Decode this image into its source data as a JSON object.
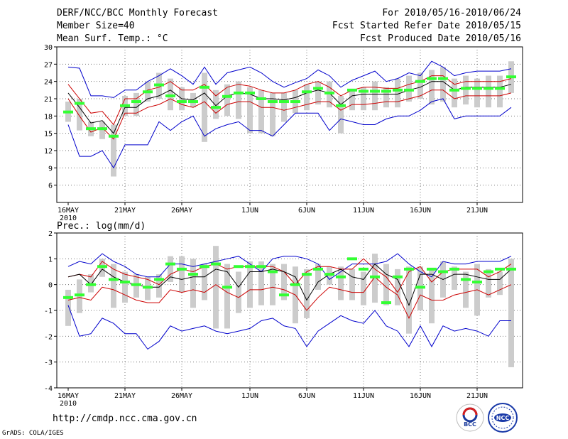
{
  "header": {
    "title": "DERF/NCC/BCC Monthly Forecast",
    "member": "Member Size=40",
    "variable": "Mean Surf. Temp.: °C",
    "period": "For 2010/05/16-2010/06/24",
    "started": "Fcst Started Refer Date 2010/05/15",
    "produced": "Fcst Produced Date 2010/05/16"
  },
  "footer": {
    "url": "http://cmdp.ncc.cma.gov.cn",
    "grads": "GrADS: COLA/IGES"
  },
  "logos": {
    "bcc": "BCC",
    "ncc": "NCC"
  },
  "colors": {
    "envelope": "#0000cc",
    "spread": "#cc0000",
    "mean": "#000000",
    "median": "#33ff33",
    "box": "#cccccc"
  },
  "chart_data": [
    {
      "type": "box-plot-with-lines",
      "title": "Mean Surf. Temp.: °C",
      "x_tick_labels": [
        "16MAY",
        "21MAY",
        "26MAY",
        "1JUN",
        "6JUN",
        "11JUN",
        "16JUN",
        "21JUN"
      ],
      "x_year_label": "2010",
      "x_tick_days": [
        0,
        5,
        10,
        16,
        21,
        26,
        31,
        36
      ],
      "ylim": [
        3,
        30
      ],
      "y_ticks": [
        6,
        9,
        12,
        15,
        18,
        21,
        24,
        27,
        30
      ],
      "days": 40,
      "max": [
        26.5,
        26.3,
        21.5,
        21.5,
        21.2,
        22.5,
        22.5,
        24.0,
        25.0,
        26.2,
        25.0,
        23.5,
        26.5,
        23.5,
        25.5,
        26.0,
        26.5,
        25.5,
        24.0,
        23.0,
        23.8,
        24.5,
        26.0,
        25.0,
        23.0,
        24.2,
        25.0,
        25.8,
        24.0,
        24.5,
        25.5,
        25.0,
        27.5,
        26.5,
        25.0,
        25.5,
        25.8,
        25.8,
        25.8,
        26.2
      ],
      "upper": [
        23.5,
        21.0,
        18.5,
        18.8,
        16.5,
        21.0,
        21.0,
        22.5,
        23.0,
        24.0,
        22.5,
        22.5,
        23.5,
        21.5,
        23.0,
        23.5,
        23.2,
        22.5,
        22.0,
        22.0,
        22.5,
        23.5,
        24.0,
        23.0,
        21.5,
        22.5,
        23.0,
        23.0,
        22.8,
        22.8,
        23.5,
        24.0,
        25.0,
        25.0,
        23.5,
        24.0,
        24.0,
        24.0,
        24.0,
        24.5
      ],
      "mean": [
        22.0,
        19.5,
        16.8,
        17.2,
        15.0,
        19.5,
        19.5,
        21.0,
        21.5,
        22.5,
        21.0,
        20.8,
        22.0,
        19.8,
        21.5,
        22.0,
        21.8,
        21.0,
        21.0,
        20.8,
        21.2,
        22.0,
        22.5,
        22.0,
        20.0,
        21.5,
        21.8,
        21.8,
        21.8,
        21.8,
        22.5,
        23.0,
        24.0,
        24.0,
        22.5,
        23.0,
        23.0,
        23.0,
        23.0,
        23.5
      ],
      "lower": [
        21.0,
        18.0,
        15.2,
        16.0,
        14.0,
        18.5,
        18.5,
        19.5,
        20.0,
        21.0,
        20.0,
        19.5,
        20.5,
        18.5,
        20.0,
        20.5,
        20.5,
        19.5,
        19.5,
        19.0,
        19.5,
        20.0,
        20.5,
        20.5,
        19.0,
        20.0,
        20.0,
        20.2,
        20.5,
        20.5,
        21.0,
        21.5,
        22.5,
        22.5,
        21.0,
        21.5,
        21.5,
        21.5,
        21.5,
        22.0
      ],
      "min": [
        16.5,
        11.0,
        11.0,
        12.0,
        9.0,
        13.0,
        13.0,
        13.0,
        17.0,
        15.5,
        17.0,
        18.0,
        14.5,
        15.8,
        16.5,
        17.0,
        15.5,
        15.5,
        14.5,
        16.5,
        18.5,
        18.5,
        18.5,
        15.5,
        17.5,
        17.0,
        16.5,
        16.5,
        17.5,
        18.0,
        18.0,
        19.0,
        20.5,
        21.0,
        17.5,
        18.0,
        18.0,
        18.0,
        18.0,
        19.5
      ],
      "box_high": [
        20.5,
        21.0,
        17.0,
        17.0,
        16.5,
        21.5,
        22.0,
        24.0,
        25.5,
        24.5,
        23.0,
        22.0,
        25.5,
        22.5,
        23.5,
        24.0,
        23.0,
        22.5,
        22.0,
        22.0,
        22.5,
        23.5,
        24.0,
        24.0,
        21.5,
        22.5,
        23.0,
        24.0,
        23.0,
        24.5,
        25.0,
        25.5,
        26.0,
        26.5,
        24.5,
        25.0,
        24.5,
        25.0,
        25.0,
        27.5
      ],
      "box_low": [
        17.0,
        15.5,
        14.5,
        14.0,
        7.5,
        18.0,
        18.0,
        20.5,
        21.0,
        19.0,
        19.0,
        19.5,
        13.5,
        17.5,
        18.0,
        17.5,
        15.0,
        15.0,
        14.5,
        17.0,
        18.5,
        19.0,
        20.0,
        19.5,
        15.0,
        19.0,
        19.0,
        19.0,
        19.5,
        19.5,
        20.5,
        21.0,
        20.0,
        20.5,
        19.5,
        20.0,
        19.5,
        19.5,
        19.5,
        22.0
      ],
      "median": [
        18.7,
        20.2,
        15.8,
        15.8,
        14.5,
        19.8,
        20.5,
        22.2,
        23.4,
        21.5,
        20.5,
        20.5,
        23.0,
        19.5,
        21.4,
        22.0,
        22.0,
        21.0,
        20.5,
        20.5,
        20.5,
        22.2,
        22.8,
        22.0,
        19.8,
        22.5,
        22.3,
        22.3,
        22.3,
        22.5,
        22.5,
        24.0,
        24.5,
        24.5,
        22.5,
        22.8,
        22.8,
        22.8,
        22.8,
        24.8
      ]
    },
    {
      "type": "box-plot-with-lines",
      "title": "Prec.: log(mm/d)",
      "x_tick_labels": [
        "16MAY",
        "21MAY",
        "26MAY",
        "1JUN",
        "6JUN",
        "11JUN",
        "16JUN",
        "21JUN"
      ],
      "x_year_label": "2010",
      "x_tick_days": [
        0,
        5,
        10,
        16,
        21,
        26,
        31,
        36
      ],
      "ylim": [
        -4,
        2
      ],
      "y_ticks": [
        -4,
        -3,
        -2,
        -1,
        0,
        1,
        2
      ],
      "days": 40,
      "max": [
        0.7,
        0.9,
        0.8,
        1.2,
        0.9,
        0.7,
        0.4,
        0.3,
        0.3,
        0.8,
        0.8,
        0.7,
        0.8,
        0.9,
        1.0,
        1.1,
        0.8,
        0.5,
        1.0,
        1.1,
        1.1,
        1.0,
        0.8,
        0.2,
        0.5,
        0.8,
        0.8,
        0.8,
        0.9,
        1.2,
        0.8,
        0.5,
        0.3,
        0.9,
        0.8,
        0.8,
        0.9,
        0.9,
        0.9,
        1.1
      ],
      "upper": [
        0.3,
        0.4,
        0.3,
        0.9,
        0.6,
        0.4,
        0.3,
        0.2,
        0.0,
        0.4,
        0.6,
        0.5,
        0.7,
        0.8,
        0.6,
        0.7,
        0.7,
        0.7,
        0.7,
        0.5,
        0.0,
        0.5,
        0.7,
        0.7,
        0.6,
        0.6,
        1.0,
        0.6,
        0.3,
        -0.3,
        0.5,
        0.7,
        0.1,
        0.5,
        0.6,
        0.6,
        0.6,
        0.3,
        0.5,
        0.8
      ],
      "mean": [
        0.3,
        0.4,
        0.0,
        0.6,
        0.3,
        0.1,
        0.0,
        -0.1,
        -0.1,
        0.3,
        0.2,
        0.3,
        0.3,
        0.6,
        0.5,
        -0.1,
        0.5,
        0.5,
        0.6,
        0.5,
        0.3,
        -0.6,
        0.1,
        0.4,
        0.6,
        0.3,
        0.2,
        0.8,
        0.4,
        0.2,
        -0.8,
        0.4,
        0.4,
        0.2,
        0.4,
        0.4,
        0.3,
        0.2,
        0.2,
        0.6
      ],
      "lower": [
        -0.6,
        -0.5,
        -0.6,
        -0.1,
        -0.2,
        -0.4,
        -0.6,
        -0.7,
        -0.7,
        -0.2,
        -0.3,
        -0.2,
        -0.3,
        0.0,
        -0.3,
        -0.5,
        -0.2,
        -0.2,
        -0.1,
        -0.2,
        -0.4,
        -1.0,
        -0.5,
        -0.1,
        -0.2,
        -0.3,
        -0.3,
        0.3,
        -0.1,
        -0.4,
        -1.3,
        -0.4,
        -0.6,
        -0.6,
        -0.4,
        -0.3,
        -0.2,
        -0.4,
        -0.2,
        0.0
      ],
      "min": [
        -0.8,
        -2.0,
        -1.9,
        -1.3,
        -1.5,
        -1.9,
        -1.9,
        -2.5,
        -2.2,
        -1.6,
        -1.8,
        -1.7,
        -1.6,
        -1.8,
        -1.9,
        -1.8,
        -1.7,
        -1.4,
        -1.3,
        -1.6,
        -1.7,
        -2.4,
        -1.8,
        -1.5,
        -1.2,
        -1.4,
        -1.5,
        -1.0,
        -1.6,
        -1.8,
        -2.4,
        -1.6,
        -2.4,
        -1.6,
        -1.8,
        -1.7,
        -1.8,
        -2.0,
        -1.4,
        -1.4
      ],
      "box_high": [
        -0.2,
        0.2,
        0.4,
        1.0,
        0.8,
        0.5,
        0.4,
        0.3,
        0.4,
        1.1,
        1.1,
        1.0,
        0.8,
        1.5,
        0.8,
        0.5,
        0.9,
        0.9,
        0.8,
        0.8,
        0.7,
        0.6,
        0.8,
        0.7,
        0.7,
        0.6,
        0.5,
        1.2,
        0.8,
        0.6,
        0.7,
        0.7,
        0.6,
        0.9,
        0.7,
        0.5,
        0.8,
        0.6,
        0.5,
        1.0
      ],
      "box_low": [
        -1.6,
        -1.1,
        -0.3,
        0.3,
        -0.9,
        -0.7,
        -0.5,
        -0.6,
        -0.5,
        0.1,
        -0.3,
        -0.9,
        -0.6,
        -1.7,
        -1.7,
        -1.1,
        -0.9,
        -0.8,
        -0.8,
        -0.6,
        -1.5,
        -1.3,
        -0.2,
        0.0,
        -0.6,
        -0.6,
        -0.8,
        -0.7,
        -0.8,
        -0.8,
        -1.9,
        -1.0,
        -1.5,
        -0.5,
        -0.2,
        -0.9,
        -1.2,
        -0.5,
        -0.4,
        -3.2
      ],
      "median": [
        -0.5,
        -0.4,
        0.0,
        0.7,
        0.2,
        0.1,
        0.0,
        -0.1,
        0.2,
        0.8,
        0.6,
        0.4,
        0.7,
        0.8,
        -0.1,
        0.7,
        0.7,
        0.7,
        0.5,
        -0.4,
        0.0,
        0.4,
        0.6,
        0.4,
        0.3,
        1.0,
        0.6,
        0.3,
        -0.7,
        0.3,
        0.6,
        -0.1,
        0.6,
        0.5,
        0.6,
        0.2,
        0.1,
        0.5,
        0.6,
        0.6
      ]
    }
  ]
}
